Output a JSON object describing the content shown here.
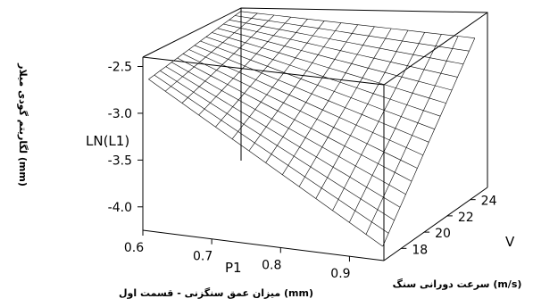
{
  "chart_data": {
    "type": "surface",
    "zlabel": "LN(L1)",
    "zlabel_fa": "لگاریتم گودی میلار (mm)",
    "xlabel": "P1",
    "xlabel_fa": "میزان عمق سنگزنی - قسمت اول (mm)",
    "ylabel": "V",
    "ylabel_fa": "سرعت دورانی سنگ (m/s)",
    "z_ticks": [
      "-2.5",
      "-3.0",
      "-3.5",
      "-4.0"
    ],
    "x_ticks": [
      "0.6",
      "0.7",
      "0.8",
      "0.9"
    ],
    "y_ticks": [
      "18",
      "20",
      "22",
      "24"
    ],
    "xlim": [
      0.6,
      0.95
    ],
    "ylim": [
      16.5,
      25.5
    ],
    "zlim": [
      -4.25,
      -2.4
    ],
    "corners": [
      {
        "P1": 0.6,
        "V": 17,
        "z": -2.68
      },
      {
        "P1": 0.94,
        "V": 17,
        "z": -4.15
      },
      {
        "P1": 0.6,
        "V": 25,
        "z": -2.65
      },
      {
        "P1": 0.94,
        "V": 25,
        "z": -2.62
      }
    ],
    "grid": true
  }
}
